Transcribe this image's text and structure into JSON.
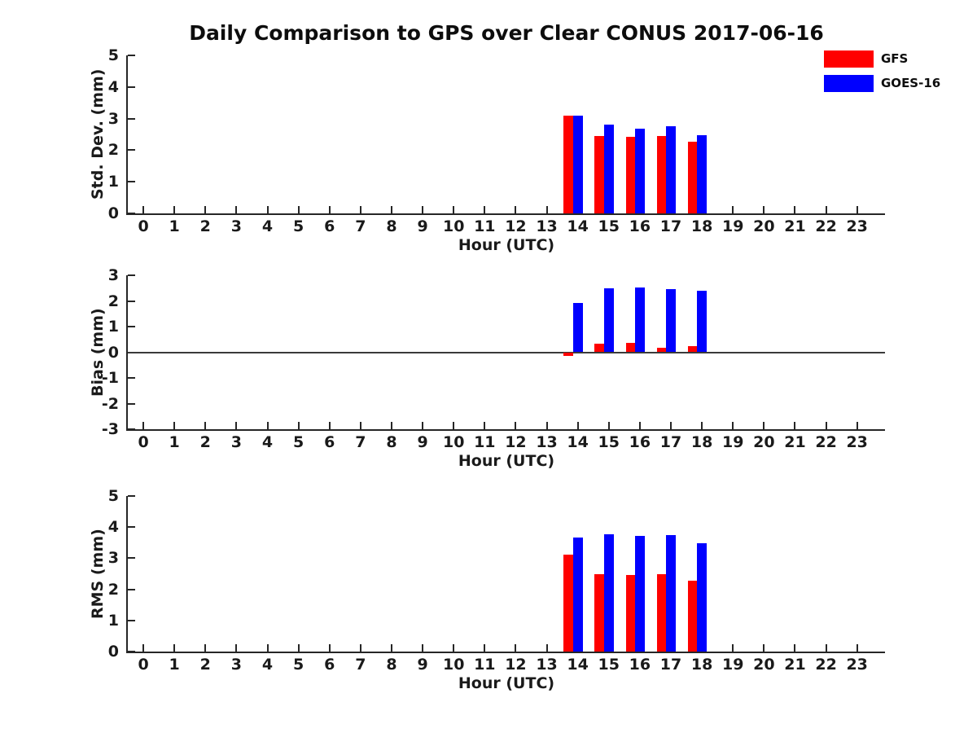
{
  "figure": {
    "title": "Daily Comparison to GPS over Clear CONUS 2017-06-16",
    "legend": [
      {
        "label": "GFS",
        "color": "#ff0000"
      },
      {
        "label": "GOES-16",
        "color": "#0000ff"
      }
    ]
  },
  "chart_data": [
    {
      "type": "bar",
      "name": "std-dev",
      "ylabel": "Std. Dev. (mm)",
      "xlabel": "Hour (UTC)",
      "ylim": [
        0,
        5
      ],
      "yticks": [
        0,
        1,
        2,
        3,
        4,
        5
      ],
      "xlim": [
        -0.5,
        23.9
      ],
      "xticks": [
        0,
        1,
        2,
        3,
        4,
        5,
        6,
        7,
        8,
        9,
        10,
        11,
        12,
        13,
        14,
        15,
        16,
        17,
        18,
        19,
        20,
        21,
        22,
        23
      ],
      "zero_line": false,
      "grid": false,
      "categories": [
        14,
        15,
        16,
        17,
        18
      ],
      "series": [
        {
          "name": "GFS",
          "color": "#ff0000",
          "values": [
            3.1,
            2.45,
            2.41,
            2.45,
            2.27
          ]
        },
        {
          "name": "GOES-16",
          "color": "#0000ff",
          "values": [
            3.1,
            2.81,
            2.67,
            2.76,
            2.48
          ]
        }
      ]
    },
    {
      "type": "bar",
      "name": "bias",
      "ylabel": "Bias (mm)",
      "xlabel": "Hour (UTC)",
      "ylim": [
        -3,
        3
      ],
      "yticks": [
        -3,
        -2,
        -1,
        0,
        1,
        2,
        3
      ],
      "xlim": [
        -0.5,
        23.9
      ],
      "xticks": [
        0,
        1,
        2,
        3,
        4,
        5,
        6,
        7,
        8,
        9,
        10,
        11,
        12,
        13,
        14,
        15,
        16,
        17,
        18,
        19,
        20,
        21,
        22,
        23
      ],
      "zero_line": true,
      "grid": false,
      "categories": [
        14,
        15,
        16,
        17,
        18
      ],
      "series": [
        {
          "name": "GFS",
          "color": "#ff0000",
          "values": [
            -0.15,
            0.34,
            0.38,
            0.19,
            0.24
          ]
        },
        {
          "name": "GOES-16",
          "color": "#0000ff",
          "values": [
            1.93,
            2.49,
            2.53,
            2.46,
            2.4
          ]
        }
      ]
    },
    {
      "type": "bar",
      "name": "rms",
      "ylabel": "RMS (mm)",
      "xlabel": "Hour (UTC)",
      "ylim": [
        0,
        5
      ],
      "yticks": [
        0,
        1,
        2,
        3,
        4,
        5
      ],
      "xlim": [
        -0.5,
        23.9
      ],
      "xticks": [
        0,
        1,
        2,
        3,
        4,
        5,
        6,
        7,
        8,
        9,
        10,
        11,
        12,
        13,
        14,
        15,
        16,
        17,
        18,
        19,
        20,
        21,
        22,
        23
      ],
      "zero_line": false,
      "grid": false,
      "categories": [
        14,
        15,
        16,
        17,
        18
      ],
      "series": [
        {
          "name": "GFS",
          "color": "#ff0000",
          "values": [
            3.12,
            2.48,
            2.45,
            2.48,
            2.28
          ]
        },
        {
          "name": "GOES-16",
          "color": "#0000ff",
          "values": [
            3.67,
            3.78,
            3.72,
            3.75,
            3.49
          ]
        }
      ]
    }
  ]
}
